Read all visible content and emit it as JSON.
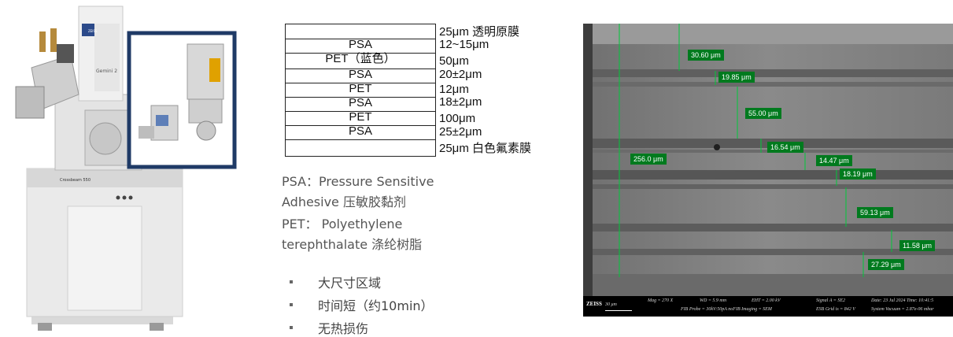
{
  "instrument": {
    "brand_badge": "ZEISS",
    "column_label": "Gemini 2",
    "cabinet_label": "Crossbeam 550"
  },
  "stack": {
    "layers": [
      "",
      "PSA",
      "PET（蓝色）",
      "PSA",
      "PET",
      "PSA",
      "PET",
      "PSA",
      ""
    ],
    "thickness": [
      "25μm  透明原膜",
      "12~15μm",
      "50μm",
      "20±2μm",
      "12μm",
      "18±2μm",
      "100μm",
      "25±2μm",
      "25μm  白色氟素膜"
    ]
  },
  "definitions": [
    "PSA：Pressure Sensitive",
    "Adhesive 压敏胶黏剂",
    "PET： Polyethylene",
    "terephthalate 涤纶树脂"
  ],
  "bullets": [
    "大尺寸区域",
    "时间短（约10min）",
    "无热损伤"
  ],
  "sem": {
    "measurements": [
      "30.60 μm",
      "19.85 μm",
      "55.00 μm",
      "16.54 μm",
      "256.0 μm",
      "14.47 μm",
      "18.19 μm",
      "59.13 μm",
      "11.58 μm",
      "27.29 μm"
    ],
    "info": {
      "logo": "ZEISS",
      "scale": "30 μm",
      "mag": "Mag =  270 X",
      "wd": "WD =  5.9 mm",
      "eht": "EHT =  2.00 kV",
      "signal": "Signal A = SE2",
      "date": "Date: 23 Jul 2024   Time: 10:41:5",
      "fib_probe": "FIB Probe = 30kV:50pA  noFIB Imaging = SEM",
      "esb": "ESB Grid is =   842 V",
      "vacuum": "System Vacuum = 2.87e-06 mbar"
    }
  }
}
